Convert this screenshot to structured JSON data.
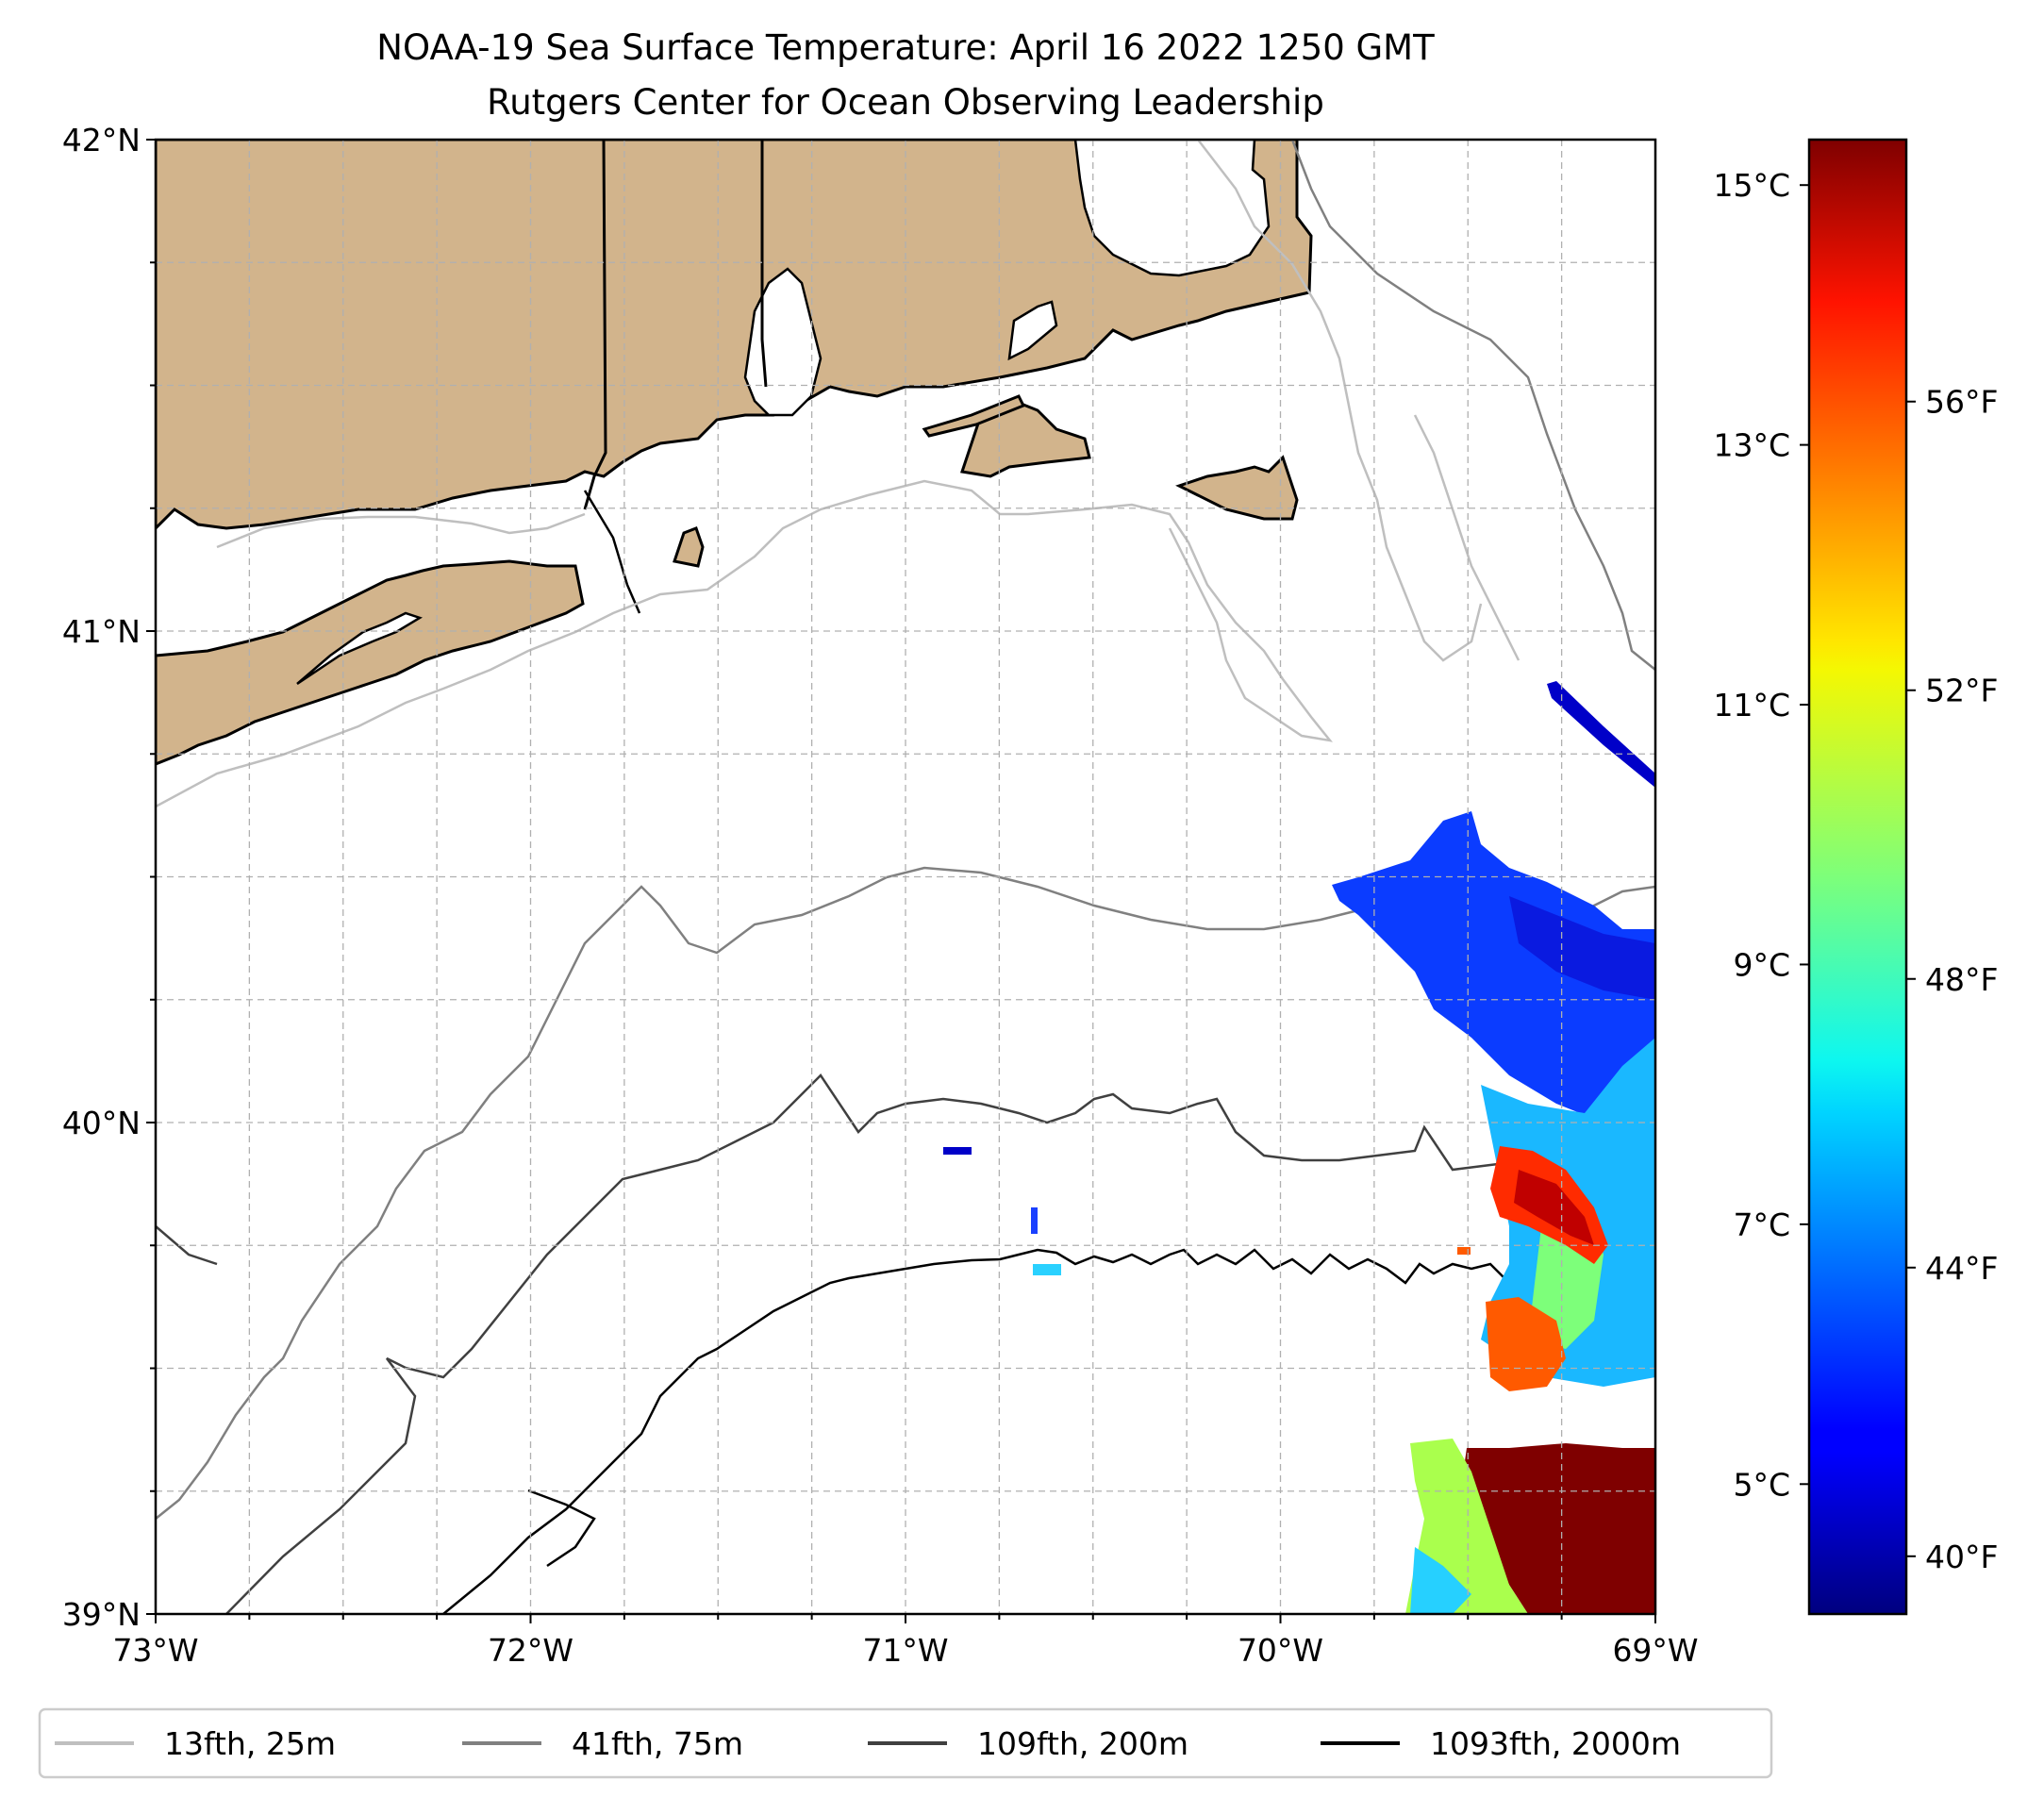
{
  "title": {
    "line1": "NOAA-19 Sea Surface Temperature: April 16 2022 1250 GMT",
    "line2": "Rutgers Center for Ocean Observing Leadership"
  },
  "map": {
    "lon_range": [
      -73,
      -69
    ],
    "lat_range": [
      39,
      42
    ],
    "x_ticks": [
      {
        "value": -73,
        "label": "73°W"
      },
      {
        "value": -72,
        "label": "72°W"
      },
      {
        "value": -71,
        "label": "71°W"
      },
      {
        "value": -70,
        "label": "70°W"
      },
      {
        "value": -69,
        "label": "69°W"
      }
    ],
    "y_ticks": [
      {
        "value": 42,
        "label": "42°N"
      },
      {
        "value": 41,
        "label": "41°N"
      },
      {
        "value": 40,
        "label": "40°N"
      },
      {
        "value": 39,
        "label": "39°N"
      }
    ],
    "gridline_spacing_deg": 0.25,
    "land_color": "#d2b48c",
    "water_color": "#ffffff"
  },
  "colorbar": {
    "colormap": "jet",
    "celsius_ticks": [
      {
        "value": 15,
        "label": "15°C"
      },
      {
        "value": 13,
        "label": "13°C"
      },
      {
        "value": 11,
        "label": "11°C"
      },
      {
        "value": 9,
        "label": "9°C"
      },
      {
        "value": 7,
        "label": "7°C"
      },
      {
        "value": 5,
        "label": "5°C"
      }
    ],
    "fahrenheit_ticks": [
      {
        "value": 56,
        "label": "56°F"
      },
      {
        "value": 52,
        "label": "52°F"
      },
      {
        "value": 48,
        "label": "48°F"
      },
      {
        "value": 44,
        "label": "44°F"
      },
      {
        "value": 40,
        "label": "40°F"
      }
    ],
    "range_celsius": [
      4.0,
      15.35
    ]
  },
  "legend": [
    {
      "label": "13fth, 25m",
      "color": "#bfbfbf"
    },
    {
      "label": "41fth, 75m",
      "color": "#808080"
    },
    {
      "label": "109fth, 200m",
      "color": "#404040"
    },
    {
      "label": "1093fth, 2000m",
      "color": "#000000"
    }
  ]
}
